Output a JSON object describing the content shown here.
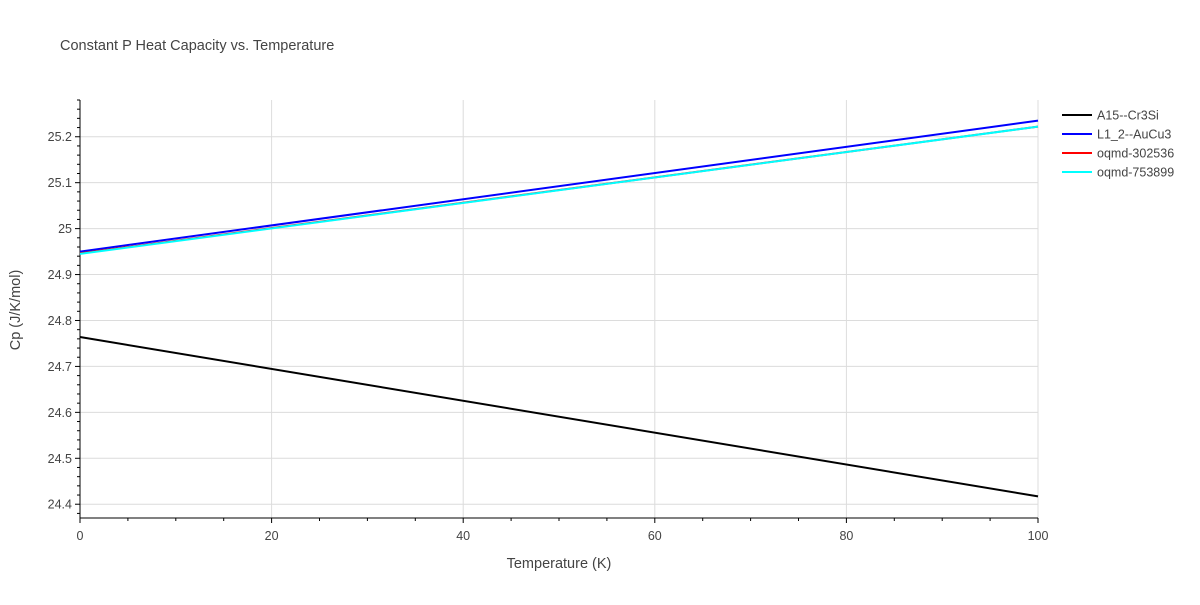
{
  "chart_data": {
    "type": "line",
    "title": "Constant P Heat Capacity vs. Temperature",
    "xlabel": "Temperature (K)",
    "ylabel": "Cp (J/K/mol)",
    "xlim": [
      0,
      100
    ],
    "ylim": [
      24.37,
      25.28
    ],
    "x_ticks": [
      0,
      20,
      40,
      60,
      80,
      100
    ],
    "y_ticks": [
      24.4,
      24.5,
      24.6,
      24.7,
      24.8,
      24.9,
      25,
      25.1,
      25.2
    ],
    "grid": true,
    "legend_position": "top-right",
    "series": [
      {
        "name": "A15--Cr3Si",
        "color": "#000000",
        "x": [
          0,
          100
        ],
        "y": [
          24.764,
          24.417
        ]
      },
      {
        "name": "L1_2--AuCu3",
        "color": "#0000ff",
        "x": [
          0,
          100
        ],
        "y": [
          24.95,
          25.235
        ]
      },
      {
        "name": "oqmd-302536",
        "color": "#ff0000",
        "x": [
          0,
          100
        ],
        "y": [
          24.946,
          25.222
        ]
      },
      {
        "name": "oqmd-753899",
        "color": "#00ffff",
        "x": [
          0,
          100
        ],
        "y": [
          24.945,
          25.222
        ]
      }
    ]
  }
}
